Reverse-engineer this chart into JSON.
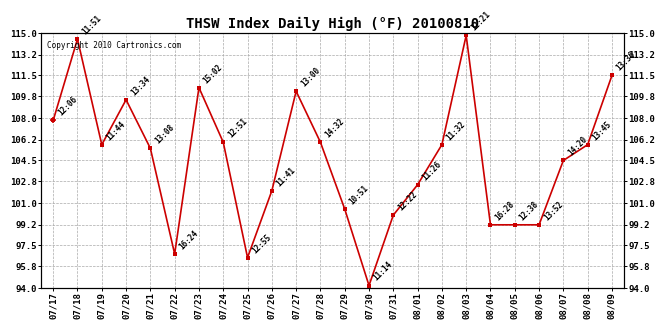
{
  "title": "THSW Index Daily High (°F) 20100810",
  "copyright": "Copyright 2010 Cartronics.com",
  "ylim": [
    94.0,
    115.0
  ],
  "yticks": [
    94.0,
    95.8,
    97.5,
    99.2,
    101.0,
    102.8,
    104.5,
    106.2,
    108.0,
    109.8,
    111.5,
    113.2,
    115.0
  ],
  "background_color": "#ffffff",
  "grid_color": "#aaaaaa",
  "line_color": "#cc0000",
  "marker_color": "#cc0000",
  "points": [
    {
      "date": "07/17",
      "time": "12:06",
      "value": 107.8
    },
    {
      "date": "07/18",
      "time": "11:51",
      "value": 114.5
    },
    {
      "date": "07/19",
      "time": "11:44",
      "value": 105.8
    },
    {
      "date": "07/20",
      "time": "13:34",
      "value": 109.5
    },
    {
      "date": "07/21",
      "time": "13:08",
      "value": 105.5
    },
    {
      "date": "07/22",
      "time": "16:24",
      "value": 96.8
    },
    {
      "date": "07/23",
      "time": "15:02",
      "value": 110.5
    },
    {
      "date": "07/24",
      "time": "12:51",
      "value": 106.0
    },
    {
      "date": "07/25",
      "time": "12:55",
      "value": 96.5
    },
    {
      "date": "07/26",
      "time": "11:41",
      "value": 102.0
    },
    {
      "date": "07/27",
      "time": "13:00",
      "value": 110.2
    },
    {
      "date": "07/28",
      "time": "14:32",
      "value": 106.0
    },
    {
      "date": "07/29",
      "time": "10:51",
      "value": 100.5
    },
    {
      "date": "07/30",
      "time": "11:14",
      "value": 94.2
    },
    {
      "date": "07/31",
      "time": "12:22",
      "value": 100.0
    },
    {
      "date": "08/01",
      "time": "11:26",
      "value": 102.5
    },
    {
      "date": "08/02",
      "time": "11:32",
      "value": 105.8
    },
    {
      "date": "08/03",
      "time": "12:21",
      "value": 114.8
    },
    {
      "date": "08/04",
      "time": "16:28",
      "value": 99.2
    },
    {
      "date": "08/05",
      "time": "12:38",
      "value": 99.2
    },
    {
      "date": "08/06",
      "time": "13:52",
      "value": 99.2
    },
    {
      "date": "08/07",
      "time": "14:20",
      "value": 104.5
    },
    {
      "date": "08/08",
      "time": "13:45",
      "value": 105.8
    },
    {
      "date": "08/09",
      "time": "13:36",
      "value": 111.5
    }
  ]
}
